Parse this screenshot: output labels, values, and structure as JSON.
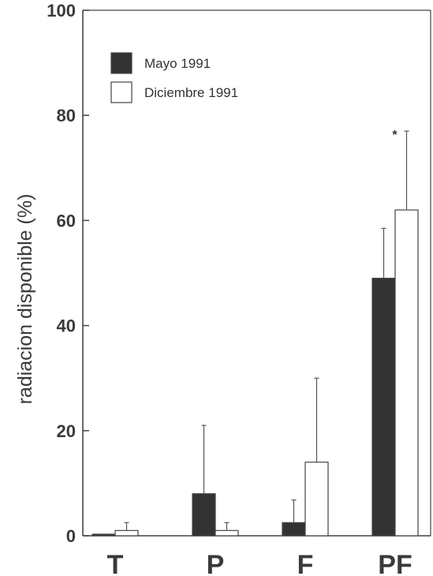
{
  "chart_data": {
    "type": "bar",
    "title": "",
    "xlabel": "",
    "ylabel": "radiacion disponible (%)",
    "ylim": [
      0,
      100
    ],
    "yticks": [
      0,
      20,
      40,
      60,
      80,
      100
    ],
    "categories": [
      "T",
      "P",
      "F",
      "PF"
    ],
    "series": [
      {
        "name": "Mayo 1991",
        "color": "#333333",
        "values": [
          0.3,
          8,
          2.5,
          49
        ],
        "error": [
          0,
          21,
          6.8,
          58.5
        ]
      },
      {
        "name": "Diciembre 1991",
        "color": "#ffffff",
        "values": [
          1,
          1,
          14,
          62
        ],
        "error": [
          2.5,
          2.5,
          30,
          77
        ]
      }
    ],
    "legend_position": "top-left",
    "grid": false,
    "annotations": [
      {
        "text": "*",
        "category": "PF",
        "series": "Diciembre 1991"
      }
    ]
  }
}
